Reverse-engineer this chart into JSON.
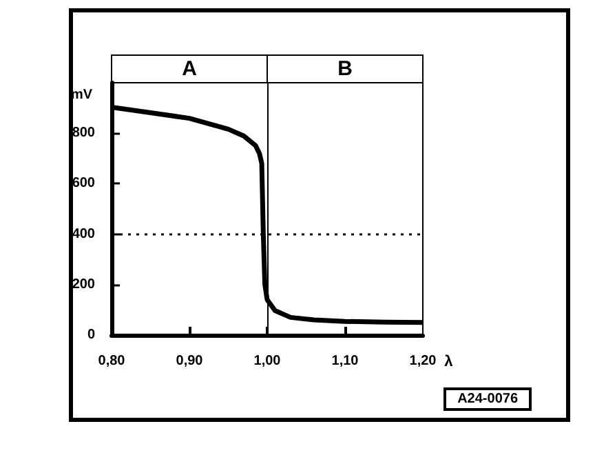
{
  "chart_data": {
    "type": "line",
    "ylabel": "mV",
    "xlabel": "λ",
    "x": [
      0.8,
      0.85,
      0.9,
      0.95,
      0.97,
      0.985,
      0.99,
      0.993,
      0.995,
      0.997,
      1.0,
      1.01,
      1.03,
      1.06,
      1.1,
      1.15,
      1.2
    ],
    "series": [
      {
        "color": "#000000",
        "values": [
          903,
          881,
          859,
          816,
          789,
          751,
          720,
          680,
          400,
          200,
          140,
          97,
          70,
          60,
          54,
          51,
          50
        ]
      }
    ],
    "xlim": [
      0.8,
      1.2
    ],
    "xticks": [
      {
        "value": 0.8,
        "label": "0,80"
      },
      {
        "value": 0.9,
        "label": "0,90"
      },
      {
        "value": 1.0,
        "label": "1,00"
      },
      {
        "value": 1.1,
        "label": "1,10"
      },
      {
        "value": 1.2,
        "label": "1,20"
      }
    ],
    "ylim": [
      0,
      1000
    ],
    "yticks": [
      0,
      200,
      400,
      600,
      800
    ],
    "ref_lines": [
      {
        "axis": "y",
        "value": 400,
        "line_style": "dotted",
        "color": "#000000"
      },
      {
        "axis": "x",
        "value": 1.0,
        "line_style": "solid",
        "color": "#000000"
      }
    ],
    "annotations": [
      "A",
      "B",
      "A24-0076"
    ],
    "marker": "none",
    "grid": false
  }
}
